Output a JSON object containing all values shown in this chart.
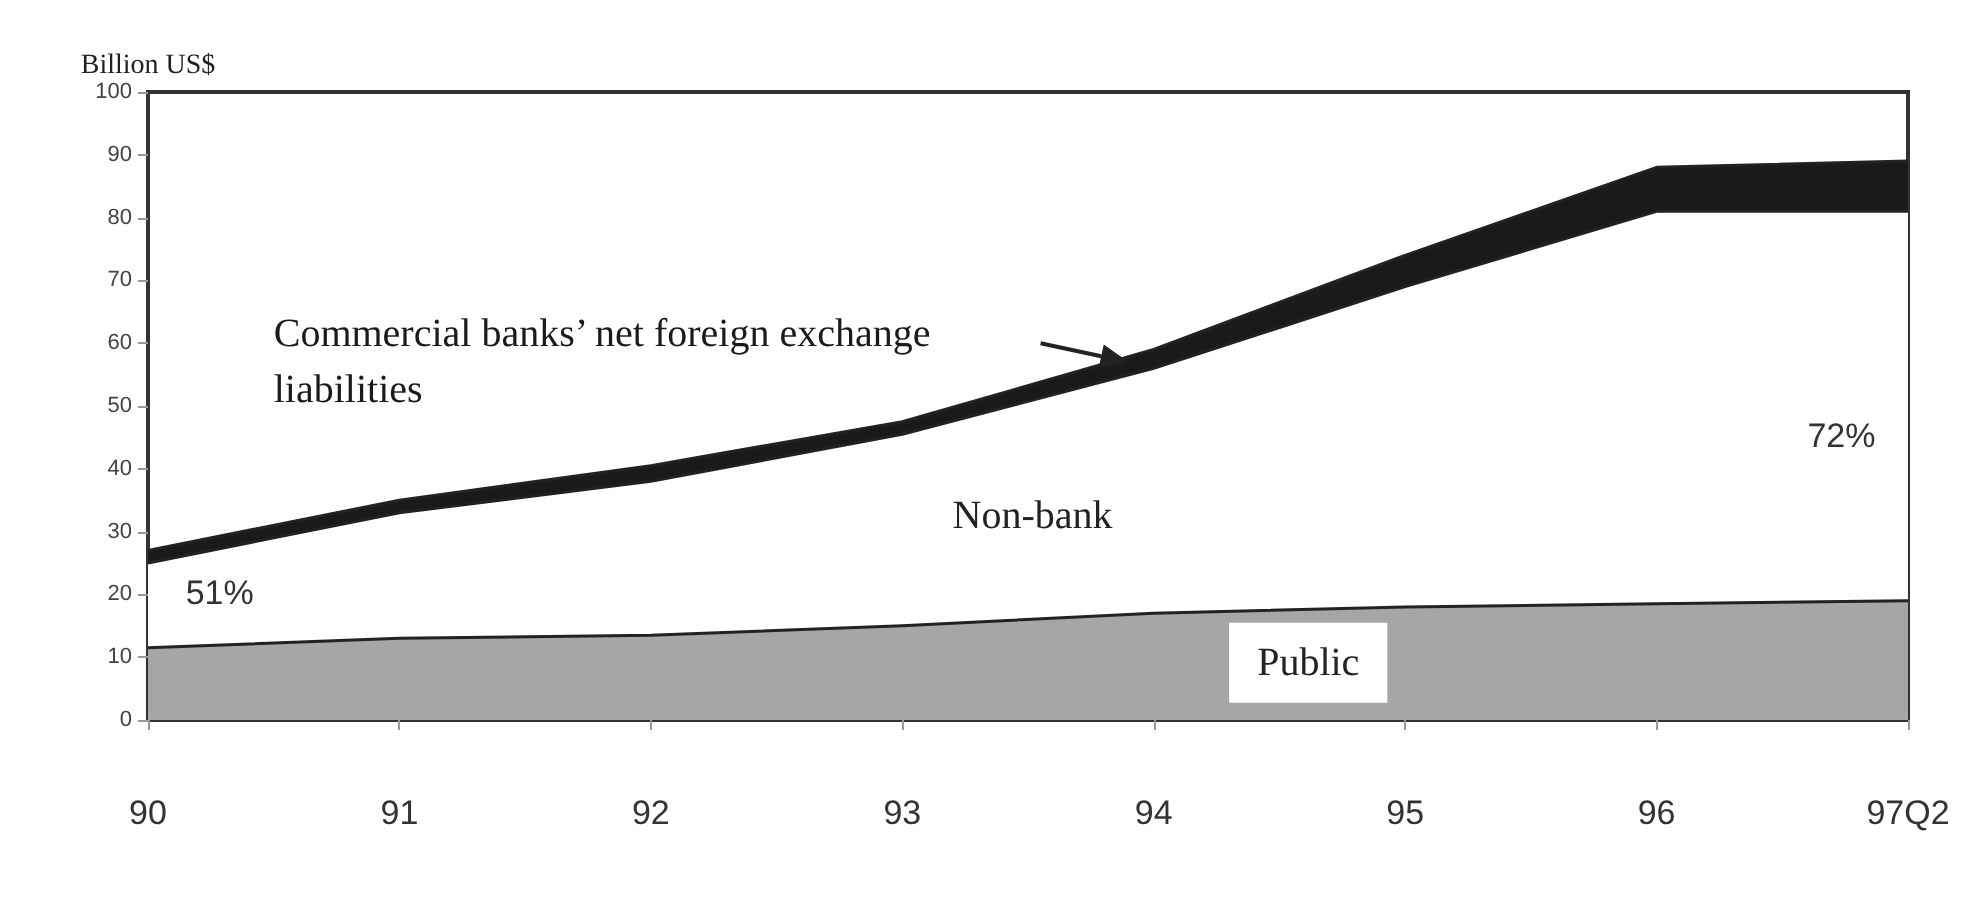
{
  "chart_data": {
    "type": "area",
    "stacked": true,
    "ylabel": "Billion US$",
    "categories": [
      "90",
      "91",
      "92",
      "93",
      "94",
      "95",
      "96",
      "97Q2"
    ],
    "series": [
      {
        "name": "Public",
        "color": "#a6a6a6",
        "values": [
          11.5,
          13,
          13.5,
          15,
          17,
          18,
          18.5,
          19
        ]
      },
      {
        "name": "Non-bank",
        "color": "#ffffff",
        "values": [
          13.5,
          20,
          24.5,
          30.5,
          39,
          51,
          62.5,
          62
        ]
      },
      {
        "name": "Commercial banks’ net foreign exchange liabilities",
        "color": "#1a1a1a",
        "values": [
          2,
          2,
          2.5,
          2,
          3,
          5,
          7,
          8
        ]
      }
    ],
    "ylim": [
      0,
      100
    ],
    "yticks": [
      0,
      10,
      20,
      30,
      40,
      50,
      60,
      70,
      80,
      90,
      100
    ],
    "annotations": [
      "51%",
      "72%"
    ],
    "grid": false,
    "legend": false
  }
}
